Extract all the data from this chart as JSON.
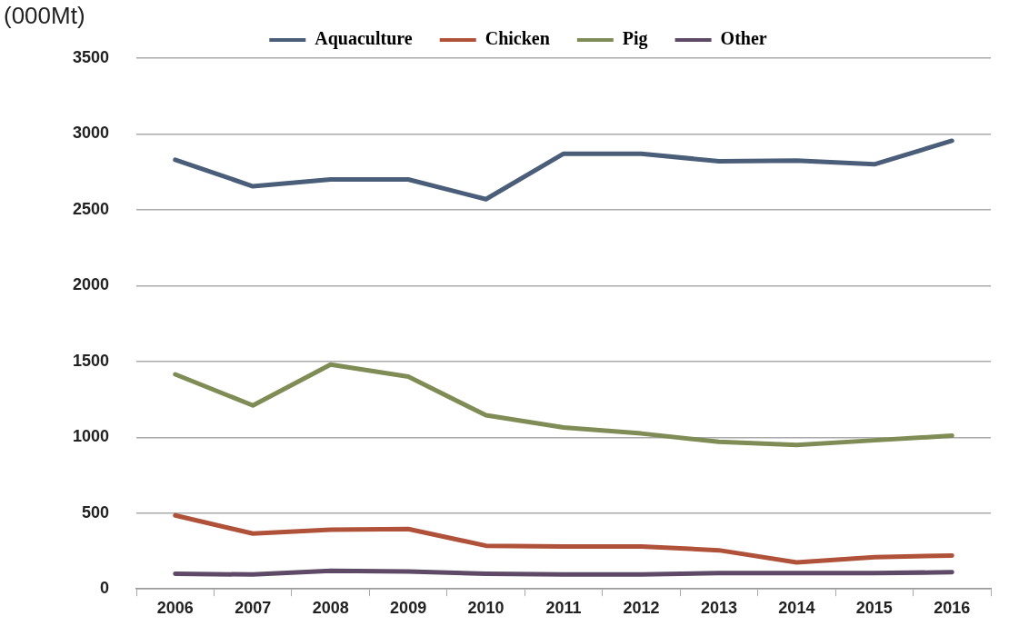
{
  "chart_data": {
    "type": "line",
    "ylabel": "(000Mt)",
    "categories": [
      "2006",
      "2007",
      "2008",
      "2009",
      "2010",
      "2011",
      "2012",
      "2013",
      "2014",
      "2015",
      "2016"
    ],
    "series": [
      {
        "name": "Aquaculture",
        "color": "#4a5e7a",
        "values": [
          2830,
          2655,
          2700,
          2700,
          2570,
          2870,
          2870,
          2820,
          2825,
          2800,
          2955
        ]
      },
      {
        "name": "Chicken",
        "color": "#b0523a",
        "values": [
          485,
          365,
          390,
          395,
          285,
          280,
          280,
          255,
          175,
          210,
          220
        ]
      },
      {
        "name": "Pig",
        "color": "#7f8c55",
        "values": [
          1415,
          1210,
          1480,
          1400,
          1145,
          1065,
          1025,
          970,
          950,
          980,
          1010
        ]
      },
      {
        "name": "Other",
        "color": "#5e4a66",
        "values": [
          100,
          95,
          120,
          115,
          100,
          95,
          95,
          105,
          105,
          105,
          110
        ]
      }
    ],
    "ylim": [
      0,
      3500
    ],
    "yticks": [
      0,
      500,
      1000,
      1500,
      2000,
      2500,
      3000,
      3500
    ],
    "grid": "y",
    "legend": "top",
    "marker": "none",
    "line_style": "solid"
  }
}
